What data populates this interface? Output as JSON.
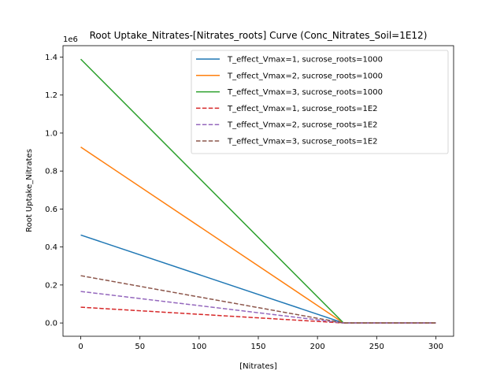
{
  "chart_data": {
    "type": "line",
    "title": "Root Uptake_Nitrates-[Nitrates_roots] Curve (Conc_Nitrates_Soil=1E12)",
    "xlabel": "[Nitrates]",
    "ylabel": "Root Uptake_Nitrates",
    "y_scale_label": "1e6",
    "xlim": [
      -15,
      315
    ],
    "ylim": [
      -0.07,
      1.46
    ],
    "xticks": [
      0,
      50,
      100,
      150,
      200,
      250,
      300
    ],
    "yticks": [
      0.0,
      0.2,
      0.4,
      0.6,
      0.8,
      1.0,
      1.2,
      1.4
    ],
    "xtick_labels": [
      "0",
      "50",
      "100",
      "150",
      "200",
      "250",
      "300"
    ],
    "ytick_labels": [
      "0.0",
      "0.2",
      "0.4",
      "0.6",
      "0.8",
      "1.0",
      "1.2",
      "1.4"
    ],
    "grid": false,
    "legend_position": "top-right",
    "series": [
      {
        "name": "T_effect_Vmax=1, sucrose_roots=1000",
        "color": "#1f77b4",
        "dash": "solid",
        "x": [
          0,
          222,
          300
        ],
        "y": [
          0.463,
          0.0,
          0.0
        ]
      },
      {
        "name": "T_effect_Vmax=2, sucrose_roots=1000",
        "color": "#ff7f0e",
        "dash": "solid",
        "x": [
          0,
          222,
          300
        ],
        "y": [
          0.926,
          0.0,
          0.0
        ]
      },
      {
        "name": "T_effect_Vmax=3, sucrose_roots=1000",
        "color": "#2ca02c",
        "dash": "solid",
        "x": [
          0,
          222,
          300
        ],
        "y": [
          1.389,
          0.0,
          0.0
        ]
      },
      {
        "name": "T_effect_Vmax=1, sucrose_roots=1E2",
        "color": "#d62728",
        "dash": "dashed",
        "x": [
          0,
          222,
          300
        ],
        "y": [
          0.083,
          0.0,
          0.0
        ]
      },
      {
        "name": "T_effect_Vmax=2, sucrose_roots=1E2",
        "color": "#9467bd",
        "dash": "dashed",
        "x": [
          0,
          222,
          300
        ],
        "y": [
          0.166,
          0.0,
          0.0
        ]
      },
      {
        "name": "T_effect_Vmax=3, sucrose_roots=1E2",
        "color": "#8c564b",
        "dash": "dashed",
        "x": [
          0,
          222,
          300
        ],
        "y": [
          0.249,
          0.0,
          0.0
        ]
      }
    ]
  }
}
